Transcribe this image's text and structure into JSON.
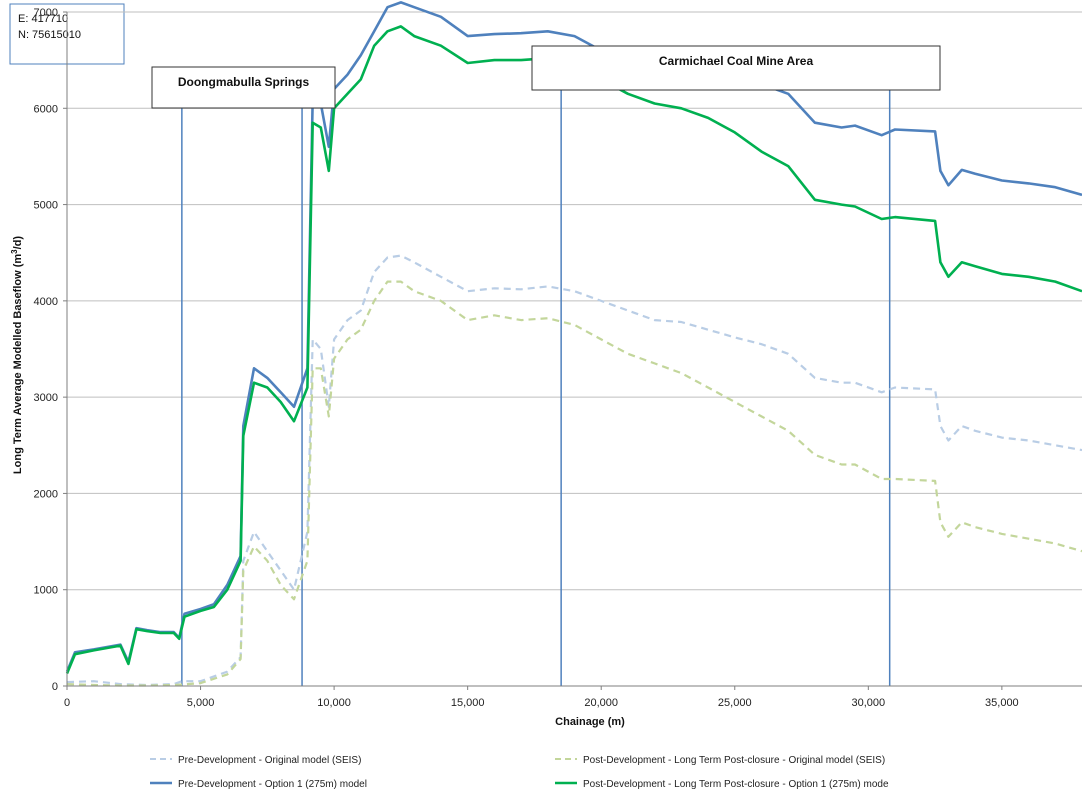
{
  "coordinates": {
    "easting": "E: 417710",
    "northing": "N: 75615010"
  },
  "chart_data": {
    "type": "line",
    "title": "",
    "xlabel": "Chainage (m)",
    "ylabel_main": "Long Term Average Modelled Baseflow (m",
    "ylabel_sup": "3",
    "ylabel_tail": "/d)",
    "xlim": [
      0,
      38000
    ],
    "ylim": [
      0,
      7000
    ],
    "x_ticks": [
      0,
      5000,
      10000,
      15000,
      20000,
      25000,
      30000,
      35000
    ],
    "x_tick_labels": [
      "0",
      "5,000",
      "10,000",
      "15,000",
      "20,000",
      "25,000",
      "30,000",
      "35,000"
    ],
    "y_ticks": [
      0,
      1000,
      2000,
      3000,
      4000,
      5000,
      6000,
      7000
    ],
    "y_tick_labels": [
      "0",
      "1000",
      "2000",
      "3000",
      "4000",
      "5000",
      "6000",
      "7000"
    ],
    "grid": "horizontal",
    "legend_position": "bottom",
    "annotations": [
      {
        "label": "Doongmabulla Springs",
        "x_start": 4300,
        "x_end": 8800
      },
      {
        "label": "Carmichael Coal Mine Area",
        "x_start": 18500,
        "x_end": 30800
      }
    ],
    "series": [
      {
        "name": "Pre-Development - Original model (SEIS)",
        "color": "#b9cde5",
        "dash": "dashed",
        "points": [
          [
            0,
            40
          ],
          [
            1000,
            50
          ],
          [
            2000,
            20
          ],
          [
            3000,
            10
          ],
          [
            4000,
            20
          ],
          [
            4300,
            50
          ],
          [
            5000,
            50
          ],
          [
            6000,
            150
          ],
          [
            6500,
            300
          ],
          [
            6600,
            1300
          ],
          [
            7000,
            1600
          ],
          [
            7500,
            1400
          ],
          [
            8000,
            1200
          ],
          [
            8500,
            1000
          ],
          [
            9000,
            1600
          ],
          [
            9200,
            3600
          ],
          [
            9500,
            3500
          ],
          [
            9800,
            2900
          ],
          [
            10000,
            3600
          ],
          [
            10500,
            3800
          ],
          [
            11000,
            3900
          ],
          [
            11500,
            4300
          ],
          [
            12000,
            4450
          ],
          [
            12500,
            4470
          ],
          [
            13000,
            4400
          ],
          [
            14000,
            4250
          ],
          [
            15000,
            4100
          ],
          [
            16000,
            4130
          ],
          [
            17000,
            4120
          ],
          [
            18000,
            4150
          ],
          [
            19000,
            4100
          ],
          [
            20000,
            4000
          ],
          [
            21000,
            3900
          ],
          [
            22000,
            3800
          ],
          [
            23000,
            3780
          ],
          [
            24000,
            3700
          ],
          [
            25000,
            3620
          ],
          [
            26000,
            3550
          ],
          [
            27000,
            3450
          ],
          [
            28000,
            3200
          ],
          [
            29000,
            3150
          ],
          [
            29500,
            3150
          ],
          [
            30500,
            3050
          ],
          [
            31000,
            3100
          ],
          [
            32500,
            3080
          ],
          [
            32700,
            2700
          ],
          [
            33000,
            2550
          ],
          [
            33500,
            2700
          ],
          [
            34000,
            2650
          ],
          [
            35000,
            2580
          ],
          [
            36000,
            2550
          ],
          [
            37000,
            2500
          ],
          [
            38000,
            2450
          ]
        ]
      },
      {
        "name": "Post-Development - Long Term Post-closure - Original model (SEIS)",
        "color": "#c3d69b",
        "dash": "dashed",
        "points": [
          [
            0,
            20
          ],
          [
            1000,
            10
          ],
          [
            2000,
            5
          ],
          [
            3000,
            5
          ],
          [
            4000,
            10
          ],
          [
            4500,
            20
          ],
          [
            5000,
            30
          ],
          [
            6000,
            120
          ],
          [
            6500,
            280
          ],
          [
            6600,
            1200
          ],
          [
            7000,
            1450
          ],
          [
            7500,
            1300
          ],
          [
            8000,
            1050
          ],
          [
            8500,
            900
          ],
          [
            9000,
            1300
          ],
          [
            9200,
            3300
          ],
          [
            9500,
            3300
          ],
          [
            9800,
            2800
          ],
          [
            10000,
            3400
          ],
          [
            10500,
            3600
          ],
          [
            11000,
            3700
          ],
          [
            11500,
            4000
          ],
          [
            12000,
            4200
          ],
          [
            12500,
            4200
          ],
          [
            13000,
            4100
          ],
          [
            14000,
            4000
          ],
          [
            15000,
            3800
          ],
          [
            16000,
            3850
          ],
          [
            17000,
            3800
          ],
          [
            18000,
            3820
          ],
          [
            19000,
            3750
          ],
          [
            20000,
            3600
          ],
          [
            21000,
            3450
          ],
          [
            22000,
            3350
          ],
          [
            23000,
            3250
          ],
          [
            24000,
            3100
          ],
          [
            25000,
            2950
          ],
          [
            26000,
            2800
          ],
          [
            27000,
            2650
          ],
          [
            28000,
            2400
          ],
          [
            29000,
            2300
          ],
          [
            29500,
            2300
          ],
          [
            30500,
            2150
          ],
          [
            31000,
            2150
          ],
          [
            32500,
            2130
          ],
          [
            32700,
            1700
          ],
          [
            33000,
            1550
          ],
          [
            33500,
            1700
          ],
          [
            34000,
            1650
          ],
          [
            35000,
            1580
          ],
          [
            36000,
            1530
          ],
          [
            37000,
            1480
          ],
          [
            38000,
            1400
          ]
        ]
      },
      {
        "name": "Pre-Development - Option 1 (275m) model",
        "color": "#4f81bd",
        "dash": "solid",
        "points": [
          [
            0,
            150
          ],
          [
            300,
            350
          ],
          [
            1000,
            380
          ],
          [
            2000,
            430
          ],
          [
            2300,
            250
          ],
          [
            2600,
            600
          ],
          [
            3000,
            580
          ],
          [
            3500,
            560
          ],
          [
            4000,
            560
          ],
          [
            4200,
            500
          ],
          [
            4400,
            750
          ],
          [
            5000,
            800
          ],
          [
            5500,
            850
          ],
          [
            6000,
            1050
          ],
          [
            6500,
            1350
          ],
          [
            6600,
            2700
          ],
          [
            7000,
            3300
          ],
          [
            7500,
            3200
          ],
          [
            8000,
            3050
          ],
          [
            8500,
            2900
          ],
          [
            9000,
            3300
          ],
          [
            9200,
            6100
          ],
          [
            9500,
            6050
          ],
          [
            9800,
            5600
          ],
          [
            10000,
            6200
          ],
          [
            10500,
            6350
          ],
          [
            11000,
            6550
          ],
          [
            11500,
            6800
          ],
          [
            12000,
            7050
          ],
          [
            12500,
            7100
          ],
          [
            13000,
            7050
          ],
          [
            14000,
            6950
          ],
          [
            15000,
            6750
          ],
          [
            16000,
            6770
          ],
          [
            17000,
            6780
          ],
          [
            18000,
            6800
          ],
          [
            19000,
            6750
          ],
          [
            20000,
            6600
          ],
          [
            21000,
            6500
          ],
          [
            22000,
            6450
          ],
          [
            23000,
            6450
          ],
          [
            24000,
            6400
          ],
          [
            25000,
            6300
          ],
          [
            26000,
            6250
          ],
          [
            27000,
            6150
          ],
          [
            28000,
            5850
          ],
          [
            29000,
            5800
          ],
          [
            29500,
            5820
          ],
          [
            30500,
            5720
          ],
          [
            31000,
            5780
          ],
          [
            32500,
            5760
          ],
          [
            32700,
            5350
          ],
          [
            33000,
            5200
          ],
          [
            33500,
            5360
          ],
          [
            34000,
            5320
          ],
          [
            35000,
            5250
          ],
          [
            36000,
            5220
          ],
          [
            37000,
            5180
          ],
          [
            38000,
            5100
          ]
        ]
      },
      {
        "name": "Post-Development - Long Term Post-closure - Option 1 (275m) mode",
        "color": "#00b050",
        "dash": "solid",
        "points": [
          [
            0,
            130
          ],
          [
            300,
            330
          ],
          [
            1000,
            370
          ],
          [
            2000,
            420
          ],
          [
            2300,
            230
          ],
          [
            2600,
            590
          ],
          [
            3000,
            570
          ],
          [
            3500,
            550
          ],
          [
            4000,
            550
          ],
          [
            4200,
            490
          ],
          [
            4400,
            720
          ],
          [
            5000,
            780
          ],
          [
            5500,
            820
          ],
          [
            6000,
            1000
          ],
          [
            6500,
            1300
          ],
          [
            6600,
            2600
          ],
          [
            7000,
            3150
          ],
          [
            7500,
            3100
          ],
          [
            8000,
            2950
          ],
          [
            8500,
            2750
          ],
          [
            9000,
            3100
          ],
          [
            9200,
            5850
          ],
          [
            9500,
            5800
          ],
          [
            9800,
            5350
          ],
          [
            10000,
            6000
          ],
          [
            10500,
            6150
          ],
          [
            11000,
            6300
          ],
          [
            11500,
            6650
          ],
          [
            12000,
            6800
          ],
          [
            12500,
            6850
          ],
          [
            13000,
            6750
          ],
          [
            14000,
            6650
          ],
          [
            15000,
            6470
          ],
          [
            16000,
            6500
          ],
          [
            17000,
            6500
          ],
          [
            18000,
            6520
          ],
          [
            19000,
            6450
          ],
          [
            20000,
            6300
          ],
          [
            21000,
            6150
          ],
          [
            22000,
            6050
          ],
          [
            23000,
            6000
          ],
          [
            24000,
            5900
          ],
          [
            25000,
            5750
          ],
          [
            26000,
            5550
          ],
          [
            27000,
            5400
          ],
          [
            28000,
            5050
          ],
          [
            29000,
            5000
          ],
          [
            29500,
            4980
          ],
          [
            30500,
            4850
          ],
          [
            31000,
            4870
          ],
          [
            32500,
            4830
          ],
          [
            32700,
            4400
          ],
          [
            33000,
            4250
          ],
          [
            33500,
            4400
          ],
          [
            34000,
            4360
          ],
          [
            35000,
            4280
          ],
          [
            36000,
            4250
          ],
          [
            37000,
            4200
          ],
          [
            38000,
            4100
          ]
        ]
      }
    ]
  }
}
